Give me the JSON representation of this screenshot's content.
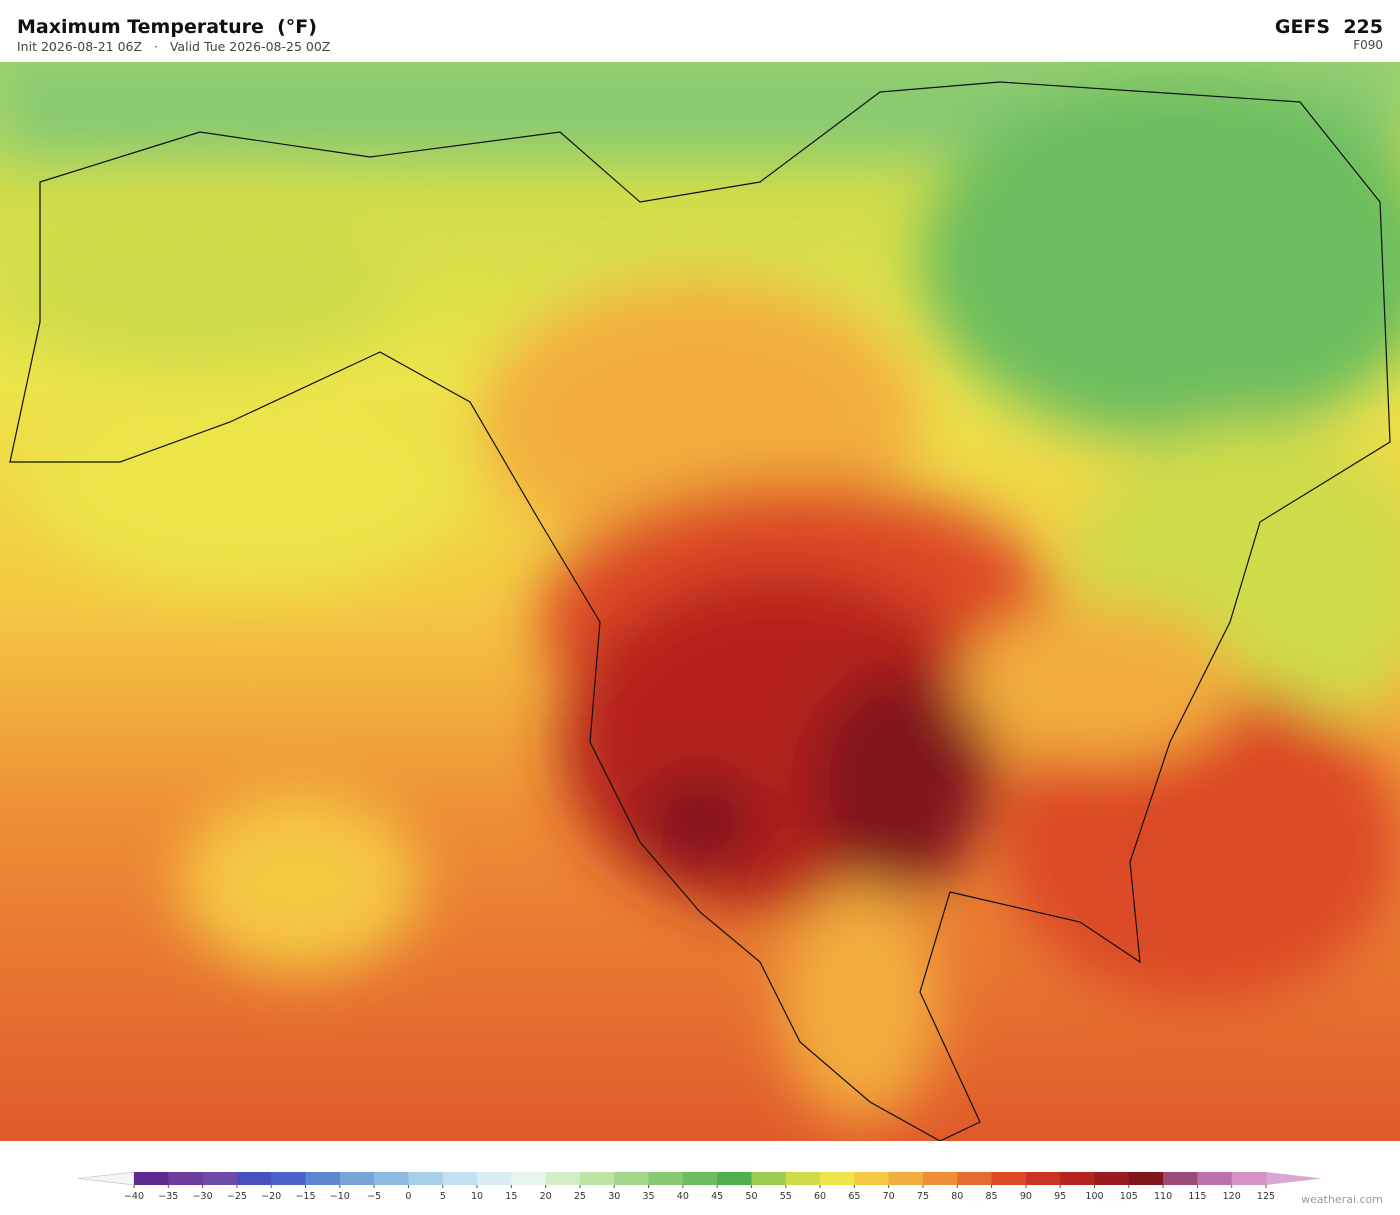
{
  "header": {
    "title": "Maximum Temperature  (°F)",
    "subtitle": "Init 2026-08-21 06Z   ·   Valid Tue 2026-08-25 00Z",
    "model": "GEFS  225",
    "forecast_hour": "F090"
  },
  "colorbar": {
    "ticks": [
      {
        "value": -40,
        "label": "−40"
      },
      {
        "value": -35,
        "label": "−35"
      },
      {
        "value": -30,
        "label": "−30"
      },
      {
        "value": -25,
        "label": "−25"
      },
      {
        "value": -20,
        "label": "−20"
      },
      {
        "value": -15,
        "label": "−15"
      },
      {
        "value": -10,
        "label": "−10"
      },
      {
        "value": -5,
        "label": "−5"
      },
      0,
      5,
      10,
      15,
      20,
      25,
      30,
      35,
      40,
      45,
      50,
      55,
      60,
      65,
      70,
      75,
      80,
      85,
      90,
      95,
      100,
      105,
      110,
      115,
      120,
      125
    ],
    "colors": [
      "#5b2c8f",
      "#6a3d9a",
      "#6f4aa8",
      "#4a4fc0",
      "#4b63c9",
      "#5f86d0",
      "#7aa3d9",
      "#8fbbe0",
      "#a8cfe8",
      "#c2e0ef",
      "#d8ecf2",
      "#e6f4ea",
      "#d4edc8",
      "#bde3a5",
      "#a3d68a",
      "#86c972",
      "#6cbd5f",
      "#4fae4e",
      "#9ccb4f",
      "#cfdc4a",
      "#ece44a",
      "#f4c843",
      "#f2ad3e",
      "#ee8e36",
      "#e86a2e",
      "#dc4a27",
      "#c93323",
      "#b5241f",
      "#9a1b1d",
      "#80161c",
      "#9b4a7a",
      "#bb72a8",
      "#d493c4"
    ],
    "under_color": "#f4f4f4",
    "over_color": "#d9a6d2"
  },
  "footer": {
    "credit": "weatherai.com"
  }
}
